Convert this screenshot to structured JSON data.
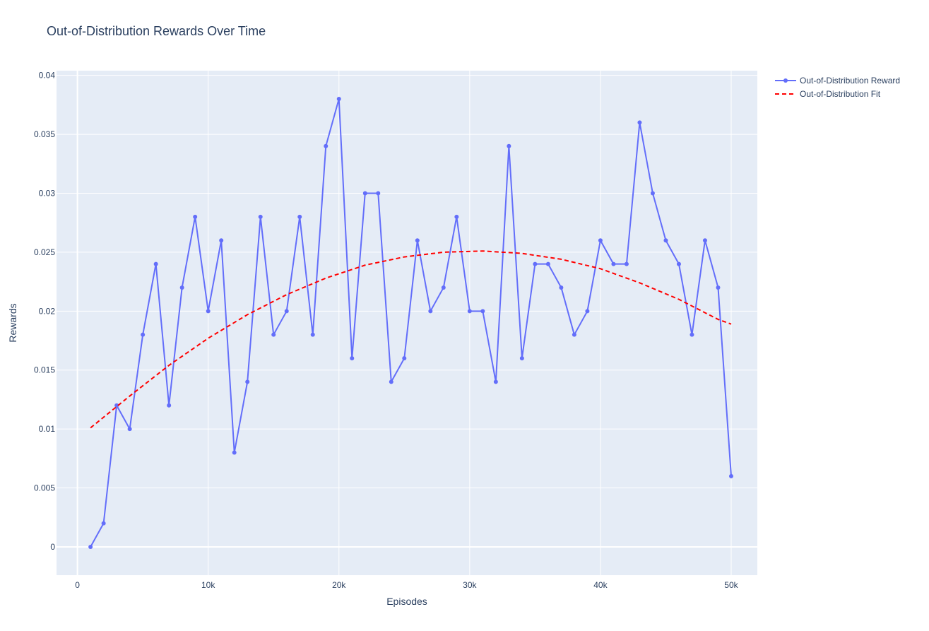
{
  "chart_data": {
    "type": "line",
    "title": "Out-of-Distribution Rewards Over Time",
    "xlabel": "Episodes",
    "ylabel": "Rewards",
    "xlim": [
      -1600,
      52000
    ],
    "ylim": [
      -0.0024,
      0.0404
    ],
    "x_ticks": [
      0,
      10000,
      20000,
      30000,
      40000,
      50000
    ],
    "x_tick_labels": [
      "0",
      "10k",
      "20k",
      "30k",
      "40k",
      "50k"
    ],
    "y_ticks": [
      0,
      0.005,
      0.01,
      0.015,
      0.02,
      0.025,
      0.03,
      0.035,
      0.04
    ],
    "y_tick_labels": [
      "0",
      "0.005",
      "0.01",
      "0.015",
      "0.02",
      "0.025",
      "0.03",
      "0.035",
      "0.04"
    ],
    "grid": true,
    "legend_position": "top-right",
    "plot_background": "#e5ecf6",
    "series": [
      {
        "name": "Out-of-Distribution Reward",
        "style": "lines+markers",
        "color": "#636efa",
        "x": [
          1000,
          2000,
          3000,
          4000,
          5000,
          6000,
          7000,
          8000,
          9000,
          10000,
          11000,
          12000,
          13000,
          14000,
          15000,
          16000,
          17000,
          18000,
          19000,
          20000,
          21000,
          22000,
          23000,
          24000,
          25000,
          26000,
          27000,
          28000,
          29000,
          30000,
          31000,
          32000,
          33000,
          34000,
          35000,
          36000,
          37000,
          38000,
          39000,
          40000,
          41000,
          42000,
          43000,
          44000,
          45000,
          46000,
          47000,
          48000,
          49000,
          50000
        ],
        "y": [
          0.0,
          0.002,
          0.012,
          0.01,
          0.018,
          0.024,
          0.012,
          0.022,
          0.028,
          0.02,
          0.026,
          0.008,
          0.014,
          0.028,
          0.018,
          0.02,
          0.028,
          0.018,
          0.034,
          0.038,
          0.016,
          0.03,
          0.03,
          0.014,
          0.016,
          0.026,
          0.02,
          0.022,
          0.028,
          0.02,
          0.02,
          0.014,
          0.034,
          0.016,
          0.024,
          0.024,
          0.022,
          0.018,
          0.02,
          0.026,
          0.024,
          0.024,
          0.036,
          0.03,
          0.026,
          0.024,
          0.018,
          0.026,
          0.022,
          0.006
        ]
      },
      {
        "name": "Out-of-Distribution Fit",
        "style": "dashed line",
        "color": "#ff0000",
        "x": [
          1000,
          4000,
          7000,
          10000,
          13000,
          16000,
          19000,
          22000,
          25000,
          28000,
          31000,
          34000,
          37000,
          40000,
          43000,
          46000,
          49000,
          50000
        ],
        "y": [
          0.0101,
          0.0128,
          0.0154,
          0.0177,
          0.0197,
          0.0214,
          0.0228,
          0.0239,
          0.0246,
          0.025,
          0.0251,
          0.0249,
          0.0244,
          0.0236,
          0.0224,
          0.021,
          0.0193,
          0.0189
        ]
      }
    ]
  }
}
